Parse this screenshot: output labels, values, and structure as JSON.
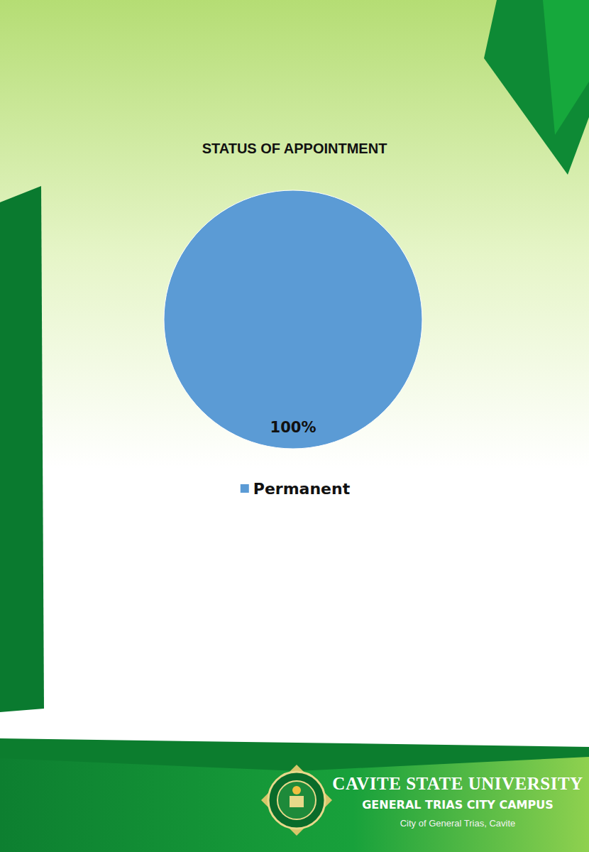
{
  "chart_data": {
    "type": "pie",
    "title": "STATUS OF APPOINTMENT",
    "categories": [
      "Permanent"
    ],
    "values": [
      100
    ],
    "value_labels": [
      "100%"
    ],
    "colors": [
      "#5b9bd5"
    ],
    "data_labels": true,
    "legend": "bottom"
  },
  "footer": {
    "title": "CAVITE STATE UNIVERSITY",
    "subtitle": "GENERAL TRIAS CITY CAMPUS",
    "location": "City of General Trias, Cavite"
  }
}
